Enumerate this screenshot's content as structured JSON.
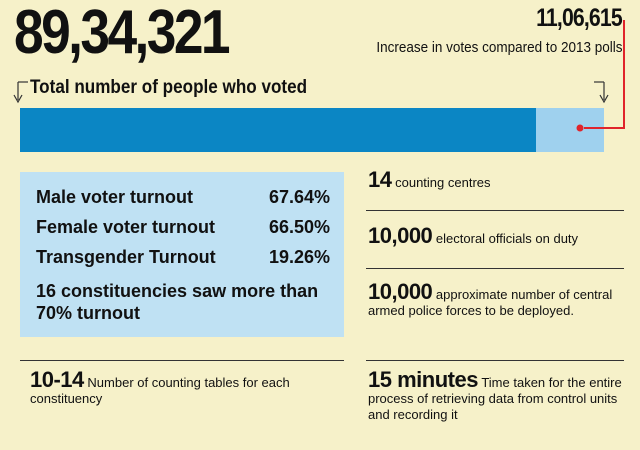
{
  "headline": {
    "total_votes": "89,34,321",
    "increase_value": "11,06,615",
    "increase_label": "Increase in votes compared to 2013 polls",
    "total_label": "Total number of people who voted"
  },
  "bar": {
    "fill_fraction": 0.884,
    "fill_color": "#0b86c4",
    "track_color": "#9fd1ee",
    "connector_color": "#e0242b"
  },
  "turnout": {
    "rows": [
      {
        "label": "Male voter turnout",
        "value": "67.64%"
      },
      {
        "label": "Female voter turnout",
        "value": "66.50%"
      },
      {
        "label": "Transgender Turnout",
        "value": "19.26%"
      }
    ],
    "note": "16 constituencies saw more than 70% turnout"
  },
  "facts": {
    "counting_tables": {
      "num": "10-14",
      "text": "Number of counting tables for each constituency"
    },
    "counting_centres": {
      "num": "14",
      "text": "counting centres"
    },
    "officials": {
      "num": "10,000",
      "text": "electoral officials on duty"
    },
    "police": {
      "num": "10,000",
      "text": "approximate number of central armed police forces to be deployed."
    },
    "time": {
      "num": "15 minutes",
      "text": "Time taken for the entire process of retrieving data from control units and recording it"
    }
  },
  "colors": {
    "background": "#f6f1c9",
    "box": "#bfe1f3"
  }
}
